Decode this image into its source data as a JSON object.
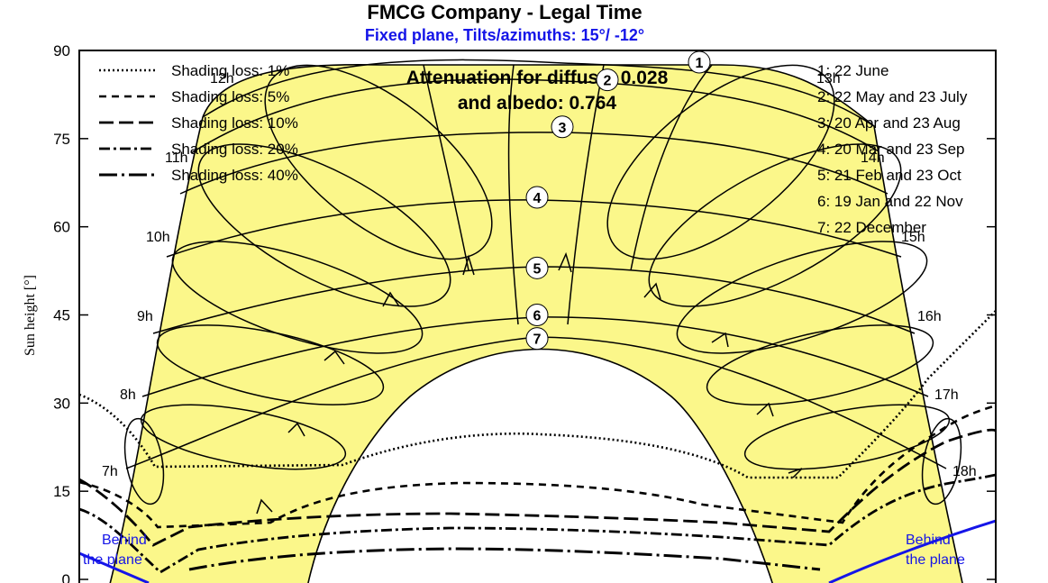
{
  "chart_data": {
    "type": "line",
    "title": "FMCG Company - Legal Time",
    "subtitle": "Fixed plane, Tilts/azimuths: 15°/ -12°",
    "ylabel": "Sun height [°]",
    "ylim": [
      0,
      90
    ],
    "yticks": [
      0,
      15,
      30,
      45,
      60,
      75,
      90
    ],
    "attenuation_lines": [
      "Attenuation for diffuse: 0.028",
      "and albedo: 0.764"
    ],
    "legend_left": [
      {
        "label": "Shading loss: 1%",
        "dash": "dotted"
      },
      {
        "label": "Shading loss: 5%",
        "dash": "short-dash"
      },
      {
        "label": "Shading loss: 10%",
        "dash": "long-dash"
      },
      {
        "label": "Shading loss: 20%",
        "dash": "dash-dot"
      },
      {
        "label": "Shading loss: 40%",
        "dash": "long-dash-dot"
      }
    ],
    "legend_right": [
      "1: 22 June",
      "2: 22 May and 23 July",
      "3: 20 Apr and 23 Aug",
      "4: 20 Mar and 23 Sep",
      "5: 21 Feb and 23 Oct",
      "6: 19 Jan and 22 Nov",
      "7: 22 December"
    ],
    "date_markers": [
      "1",
      "2",
      "3",
      "4",
      "5",
      "6",
      "7"
    ],
    "hour_labels": [
      "7h",
      "8h",
      "9h",
      "10h",
      "11h",
      "12h",
      "13h",
      "14h",
      "15h",
      "16h",
      "17h",
      "18h"
    ],
    "behind_plane_labels": [
      [
        "Behind",
        "the plane"
      ],
      [
        "Behind",
        "the plane"
      ]
    ],
    "sun_path_altitudes": [
      {
        "marker": "1",
        "max": 88
      },
      {
        "marker": "2",
        "max": 85
      },
      {
        "marker": "3",
        "max": 77
      },
      {
        "marker": "4",
        "max": 65
      },
      {
        "marker": "5",
        "max": 53
      },
      {
        "marker": "6",
        "max": 45
      },
      {
        "marker": "7",
        "max": 41
      }
    ],
    "colors": {
      "band_fill": "#fbf78a",
      "curve": "#000000",
      "behind_plane": "#1515e8",
      "subtitle": "#1515e8",
      "title": "#000000"
    }
  }
}
